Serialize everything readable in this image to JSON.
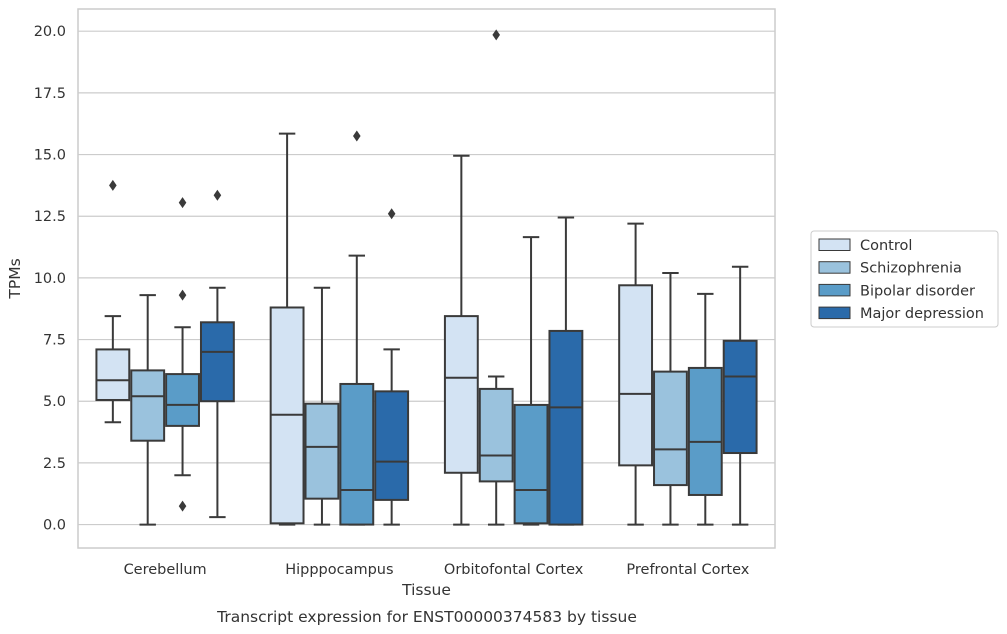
{
  "caption": "Transcript expression for ENST00000374583 by tissue",
  "chart_data": {
    "type": "box",
    "xlabel": "Tissue",
    "ylabel": "TPMs",
    "ylim": [
      -0.95,
      20.9
    ],
    "yticks": [
      "0.0",
      "2.5",
      "5.0",
      "7.5",
      "10.0",
      "12.5",
      "15.0",
      "17.5",
      "20.0"
    ],
    "grid": true,
    "legend_position": "right",
    "categories": [
      "Cerebellum",
      "Hipppocampus",
      "Orbitofontal Cortex",
      "Prefrontal Cortex"
    ],
    "series": [
      {
        "name": "Control",
        "color": "#d3e3f3",
        "boxes": [
          {
            "whisker_low": 4.15,
            "q1": 5.05,
            "median": 5.85,
            "q3": 7.1,
            "whisker_high": 8.45,
            "outliers": [
              13.75
            ]
          },
          {
            "whisker_low": 0.0,
            "q1": 0.05,
            "median": 4.45,
            "q3": 8.8,
            "whisker_high": 15.85,
            "outliers": []
          },
          {
            "whisker_low": 0.0,
            "q1": 2.1,
            "median": 5.95,
            "q3": 8.45,
            "whisker_high": 14.95,
            "outliers": []
          },
          {
            "whisker_low": 0.0,
            "q1": 2.4,
            "median": 5.3,
            "q3": 9.7,
            "whisker_high": 12.2,
            "outliers": []
          }
        ]
      },
      {
        "name": "Schizophrenia",
        "color": "#9ac2dd",
        "boxes": [
          {
            "whisker_low": 0.0,
            "q1": 3.4,
            "median": 5.2,
            "q3": 6.25,
            "whisker_high": 9.3,
            "outliers": []
          },
          {
            "whisker_low": 0.0,
            "q1": 1.05,
            "median": 3.15,
            "q3": 4.9,
            "whisker_high": 9.6,
            "outliers": []
          },
          {
            "whisker_low": 0.0,
            "q1": 1.75,
            "median": 2.8,
            "q3": 5.5,
            "whisker_high": 6.0,
            "outliers": [
              19.85
            ]
          },
          {
            "whisker_low": 0.0,
            "q1": 1.6,
            "median": 3.05,
            "q3": 6.2,
            "whisker_high": 10.2,
            "outliers": []
          }
        ]
      },
      {
        "name": "Bipolar disorder",
        "color": "#5a9cc8",
        "boxes": [
          {
            "whisker_low": 2.0,
            "q1": 4.0,
            "median": 4.85,
            "q3": 6.1,
            "whisker_high": 8.0,
            "outliers": [
              9.3,
              13.05,
              0.75
            ]
          },
          {
            "whisker_low": 0.0,
            "q1": 0.0,
            "median": 1.4,
            "q3": 5.7,
            "whisker_high": 10.9,
            "outliers": [
              15.75
            ]
          },
          {
            "whisker_low": 0.0,
            "q1": 0.05,
            "median": 1.4,
            "q3": 4.85,
            "whisker_high": 11.65,
            "outliers": []
          },
          {
            "whisker_low": 0.0,
            "q1": 1.2,
            "median": 3.35,
            "q3": 6.35,
            "whisker_high": 9.35,
            "outliers": []
          }
        ]
      },
      {
        "name": "Major depression",
        "color": "#2a6aaa",
        "boxes": [
          {
            "whisker_low": 0.3,
            "q1": 5.0,
            "median": 7.0,
            "q3": 8.2,
            "whisker_high": 9.6,
            "outliers": [
              13.35
            ]
          },
          {
            "whisker_low": 0.0,
            "q1": 1.0,
            "median": 2.55,
            "q3": 5.4,
            "whisker_high": 7.1,
            "outliers": [
              12.6
            ]
          },
          {
            "whisker_low": 0.0,
            "q1": 0.0,
            "median": 4.75,
            "q3": 7.85,
            "whisker_high": 12.45,
            "outliers": []
          },
          {
            "whisker_low": 0.0,
            "q1": 2.9,
            "median": 6.0,
            "q3": 7.45,
            "whisker_high": 10.45,
            "outliers": []
          }
        ]
      }
    ]
  }
}
